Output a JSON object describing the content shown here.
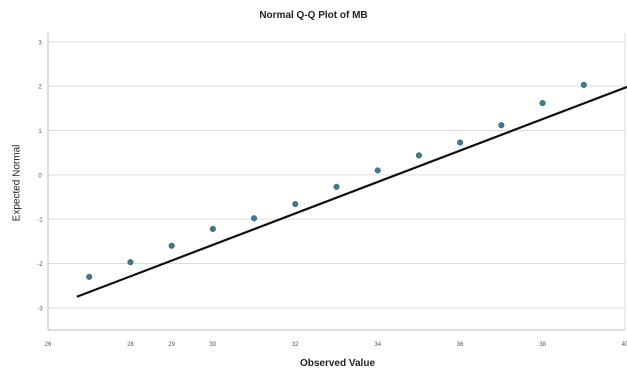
{
  "chart_data": {
    "type": "scatter",
    "title": "Normal Q-Q Plot of MB",
    "xlabel": "Observed Value",
    "ylabel": "Expected Normal",
    "xlim": [
      26,
      40
    ],
    "ylim": [
      -3.5,
      3.2
    ],
    "x_ticks": [
      26,
      28,
      29,
      30,
      32,
      34,
      36,
      38,
      40
    ],
    "x_tick_labels": [
      "26",
      "28",
      "29",
      "30",
      "32",
      "34",
      "36",
      "38",
      "40"
    ],
    "y_ticks": [
      3,
      2,
      1,
      0,
      -1,
      -2,
      -3
    ],
    "y_tick_labels": [
      "3",
      "2",
      "1",
      "0",
      "-1",
      "-2",
      "-3"
    ],
    "grid": "horizontal",
    "colors": {
      "points": "#3d7a91",
      "line": "#111111",
      "grid": "#dddddd",
      "axis": "#bbbbbb"
    },
    "points": [
      {
        "x": 27.0,
        "y": -2.3
      },
      {
        "x": 28.0,
        "y": -1.97
      },
      {
        "x": 29.0,
        "y": -1.6
      },
      {
        "x": 30.0,
        "y": -1.22
      },
      {
        "x": 31.0,
        "y": -0.98
      },
      {
        "x": 32.0,
        "y": -0.66
      },
      {
        "x": 33.0,
        "y": -0.27
      },
      {
        "x": 34.0,
        "y": 0.1
      },
      {
        "x": 35.0,
        "y": 0.44
      },
      {
        "x": 36.0,
        "y": 0.73
      },
      {
        "x": 37.0,
        "y": 1.12
      },
      {
        "x": 38.0,
        "y": 1.62
      },
      {
        "x": 39.0,
        "y": 2.03
      }
    ],
    "reference_line": {
      "x_start": 26.7,
      "y_start": -2.75,
      "x_end": 40.6,
      "y_end": 2.18
    }
  }
}
